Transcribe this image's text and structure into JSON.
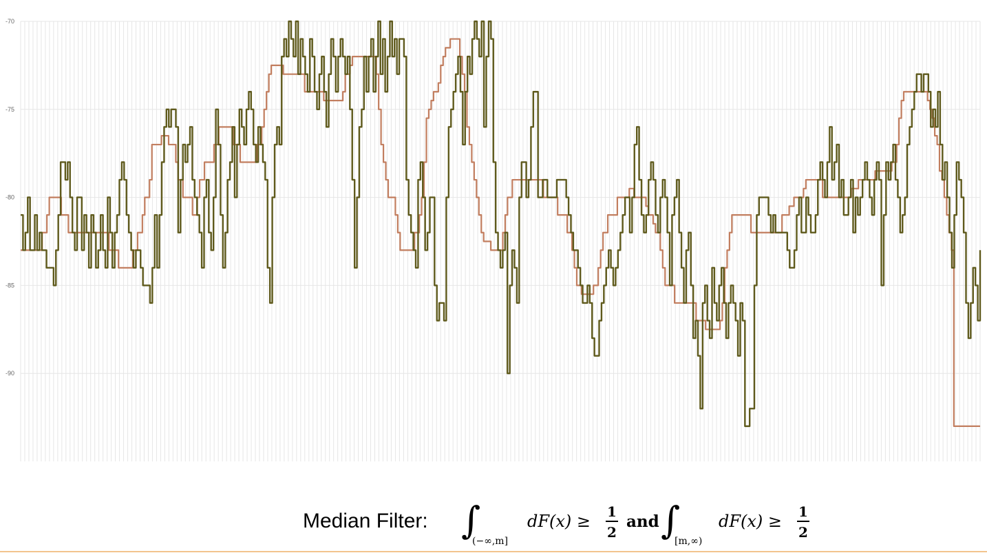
{
  "chart_data": {
    "type": "line",
    "title": "",
    "xlabel": "",
    "ylabel": "",
    "ylim": [
      -95,
      -70
    ],
    "yticks": [
      -70,
      -75,
      -80,
      -85,
      -90
    ],
    "ytick_labels": [
      "-70",
      "-75",
      "-80",
      "-85",
      "-90"
    ],
    "grid": true,
    "legend": "none",
    "series": [
      {
        "color": "#5f5a1c",
        "values": [
          -81,
          -83,
          -82,
          -80,
          -83,
          -83,
          -81,
          -83,
          -82,
          -83,
          -83,
          -84,
          -84,
          -84,
          -85,
          -83,
          -81,
          -78,
          -78,
          -79,
          -78,
          -80,
          -82,
          -83,
          -80,
          -80,
          -83,
          -81,
          -82,
          -84,
          -81,
          -82,
          -84,
          -83,
          -81,
          -83,
          -84,
          -80,
          -82,
          -84,
          -82,
          -81,
          -79,
          -78,
          -79,
          -81,
          -82,
          -83,
          -84,
          -83,
          -83,
          -84,
          -85,
          -85,
          -85,
          -86,
          -84,
          -81,
          -84,
          -81,
          -78,
          -76,
          -75,
          -76,
          -75,
          -75,
          -76,
          -82,
          -79,
          -77,
          -78,
          -77,
          -76,
          -79,
          -80,
          -81,
          -82,
          -84,
          -80,
          -79,
          -82,
          -83,
          -80,
          -75,
          -77,
          -81,
          -84,
          -82,
          -79,
          -78,
          -76,
          -80,
          -77,
          -75,
          -76,
          -77,
          -75,
          -74,
          -75,
          -77,
          -78,
          -76,
          -77,
          -78,
          -79,
          -84,
          -86,
          -80,
          -77,
          -76,
          -77,
          -72,
          -71,
          -72,
          -70,
          -71,
          -72,
          -70,
          -73,
          -71,
          -72,
          -73,
          -74,
          -71,
          -72,
          -74,
          -75,
          -73,
          -72,
          -74,
          -76,
          -73,
          -71,
          -72,
          -74,
          -72,
          -71,
          -72,
          -73,
          -72,
          -75,
          -79,
          -84,
          -80,
          -76,
          -75,
          -72,
          -74,
          -72,
          -71,
          -74,
          -72,
          -70,
          -73,
          -71,
          -74,
          -72,
          -70,
          -72,
          -71,
          -73,
          -71,
          -71,
          -72,
          -79,
          -81,
          -82,
          -83,
          -84,
          -79,
          -78,
          -80,
          -83,
          -82,
          -80,
          -80,
          -85,
          -87,
          -86,
          -86,
          -87,
          -80,
          -76,
          -75,
          -74,
          -73,
          -72,
          -74,
          -77,
          -74,
          -72,
          -73,
          -71,
          -70,
          -71,
          -72,
          -70,
          -76,
          -72,
          -70,
          -71,
          -78,
          -82,
          -83,
          -84,
          -83,
          -82,
          -90,
          -85,
          -83,
          -84,
          -86,
          -80,
          -78,
          -78,
          -80,
          -79,
          -76,
          -74,
          -74,
          -80,
          -80,
          -79,
          -79,
          -80,
          -80,
          -80,
          -80,
          -79,
          -79,
          -79,
          -79,
          -80,
          -81,
          -82,
          -83,
          -83,
          -84,
          -85,
          -86,
          -86,
          -85,
          -86,
          -88,
          -89,
          -89,
          -87,
          -86,
          -85,
          -84,
          -83,
          -84,
          -85,
          -84,
          -83,
          -82,
          -81,
          -80,
          -80,
          -82,
          -80,
          -77,
          -76,
          -79,
          -81,
          -82,
          -81,
          -79,
          -78,
          -79,
          -81,
          -82,
          -80,
          -79,
          -80,
          -82,
          -85,
          -81,
          -80,
          -79,
          -82,
          -84,
          -86,
          -83,
          -82,
          -85,
          -88,
          -87,
          -89,
          -92,
          -86,
          -85,
          -87,
          -88,
          -84,
          -86,
          -87,
          -85,
          -84,
          -86,
          -88,
          -86,
          -85,
          -86,
          -87,
          -89,
          -86,
          -87,
          -93,
          -93,
          -92,
          -92,
          -85,
          -81,
          -80,
          -80,
          -80,
          -80,
          -81,
          -82,
          -81,
          -82,
          -82,
          -82,
          -82,
          -82,
          -83,
          -84,
          -84,
          -83,
          -81,
          -80,
          -82,
          -82,
          -80,
          -81,
          -82,
          -82,
          -81,
          -79,
          -78,
          -79,
          -80,
          -78,
          -76,
          -79,
          -78,
          -77,
          -80,
          -79,
          -81,
          -81,
          -80,
          -79,
          -82,
          -80,
          -81,
          -80,
          -79,
          -78,
          -79,
          -80,
          -81,
          -79,
          -78,
          -79,
          -85,
          -81,
          -78,
          -79,
          -78,
          -77,
          -79,
          -80,
          -82,
          -81,
          -80,
          -77,
          -76,
          -75,
          -74,
          -73,
          -73,
          -74,
          -73,
          -73,
          -74,
          -76,
          -75,
          -76,
          -74,
          -77,
          -79,
          -78,
          -80,
          -82,
          -84,
          -81,
          -78,
          -79,
          -80,
          -82,
          -86,
          -88,
          -86,
          -84,
          -85,
          -87,
          -83
        ]
      },
      {
        "color": "#c27e5f",
        "values": [
          -83,
          -83,
          -83,
          -83,
          -83,
          -83,
          -83,
          -83,
          -83,
          -82,
          -82,
          -81,
          -80,
          -80,
          -80,
          -80,
          -80,
          -81,
          -81,
          -81,
          -82,
          -82,
          -82,
          -82,
          -82,
          -82,
          -82,
          -82,
          -82,
          -82,
          -82,
          -82,
          -82,
          -82,
          -82,
          -82,
          -82,
          -83,
          -83,
          -83,
          -83,
          -84,
          -84,
          -84,
          -84,
          -84,
          -84,
          -83,
          -83,
          -82,
          -82,
          -81,
          -80,
          -80,
          -79,
          -77,
          -77,
          -77,
          -77,
          -76.5,
          -76.5,
          -76.5,
          -77,
          -77,
          -77,
          -78,
          -79,
          -79,
          -80,
          -80,
          -80,
          -80,
          -81,
          -81,
          -80,
          -79,
          -79,
          -78,
          -78,
          -78,
          -78,
          -77,
          -77,
          -76,
          -76,
          -76,
          -76,
          -76,
          -76,
          -77,
          -77,
          -77,
          -78,
          -78,
          -78,
          -78,
          -78,
          -78,
          -78,
          -77,
          -77,
          -76,
          -75,
          -74,
          -73,
          -72.5,
          -72.5,
          -72.5,
          -72.5,
          -72.5,
          -73,
          -73,
          -73,
          -73,
          -73,
          -73,
          -73,
          -73,
          -73,
          -74,
          -74,
          -74,
          -74,
          -74,
          -74,
          -74,
          -74,
          -74.5,
          -74.5,
          -74.5,
          -74.5,
          -74.5,
          -74.5,
          -74.5,
          -74.5,
          -74,
          -73,
          -73,
          -72.5,
          -72,
          -72,
          -72,
          -72,
          -72,
          -72,
          -72,
          -72,
          -72,
          -72,
          -73,
          -75,
          -77,
          -78,
          -79,
          -80,
          -80,
          -80,
          -81,
          -82,
          -83,
          -83,
          -83,
          -83,
          -83,
          -83,
          -82,
          -82,
          -81,
          -80,
          -78,
          -75.5,
          -75,
          -74.5,
          -74,
          -74,
          -73.5,
          -72.5,
          -72,
          -71.5,
          -71.5,
          -71,
          -71,
          -71,
          -71,
          -72,
          -73,
          -74,
          -76,
          -77,
          -78,
          -79,
          -80,
          -81,
          -82,
          -82.5,
          -82.5,
          -82.5,
          -83,
          -83,
          -83,
          -83,
          -83,
          -82,
          -81,
          -80,
          -80,
          -79,
          -79,
          -79,
          -79,
          -79,
          -79,
          -79,
          -79,
          -79,
          -79,
          -79,
          -79,
          -79,
          -80,
          -80,
          -80,
          -80,
          -80,
          -80,
          -81,
          -81,
          -81,
          -81,
          -82,
          -82,
          -83,
          -84,
          -85,
          -85,
          -85.5,
          -85.5,
          -85.5,
          -85.5,
          -85.5,
          -85,
          -85,
          -84,
          -83,
          -82,
          -82,
          -81,
          -81,
          -81,
          -81,
          -80,
          -80,
          -80,
          -80,
          -80,
          -79.5,
          -79.5,
          -80,
          -80,
          -80,
          -80,
          -80,
          -80.5,
          -81,
          -81,
          -81.5,
          -82,
          -82,
          -83,
          -84,
          -85,
          -85,
          -85,
          -85,
          -86,
          -86,
          -86,
          -86,
          -86,
          -86,
          -86,
          -86,
          -86,
          -87,
          -87,
          -87,
          -87,
          -87.5,
          -87.5,
          -87.5,
          -87.5,
          -87.5,
          -87.5,
          -87,
          -86,
          -84,
          -83,
          -82,
          -81,
          -81,
          -81,
          -81,
          -81,
          -81,
          -81,
          -81,
          -82,
          -82,
          -82,
          -82,
          -82,
          -82,
          -82,
          -82,
          -82,
          -82,
          -82,
          -82,
          -82,
          -81,
          -81,
          -81,
          -80.5,
          -80.5,
          -80,
          -80,
          -80,
          -80,
          -79.5,
          -79,
          -79,
          -79,
          -79,
          -79,
          -79,
          -79,
          -80,
          -80,
          -80,
          -80,
          -80,
          -80,
          -80,
          -80,
          -80,
          -80,
          -80,
          -80,
          -79.5,
          -79.5,
          -79.5,
          -79,
          -79,
          -79,
          -79,
          -79,
          -79,
          -79,
          -78.5,
          -78.5,
          -78.5,
          -78.5,
          -78.5,
          -78.5,
          -78.5,
          -78,
          -78,
          -77,
          -75.5,
          -74.5,
          -74,
          -74,
          -74,
          -74,
          -74,
          -74,
          -74,
          -74,
          -74,
          -74,
          -74.5,
          -75,
          -75.5,
          -76.5,
          -77,
          -78.5,
          -79,
          -80,
          -81,
          -82,
          -83,
          -93,
          -93,
          -93,
          -93,
          -93,
          -93,
          -93,
          -93,
          -93,
          -93,
          -93,
          -93
        ]
      }
    ]
  },
  "caption": {
    "label": "Median Filter:",
    "formula": {
      "integral": "∫",
      "lower1": "(−∞,m]",
      "integrand1": "dF(x) ≥",
      "frac_num": "1",
      "frac_den": "2",
      "conj": "and",
      "lower2": "[m,∞)",
      "integrand2": "dF(x) ≥"
    }
  },
  "colors": {
    "raw_line": "#5f5a1c",
    "median_line": "#c27e5f",
    "grid": "#e6e6e6",
    "bottom_rule": "#f2c48d"
  }
}
